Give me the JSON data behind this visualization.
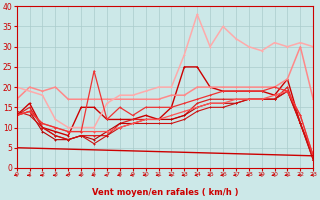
{
  "xlabel": "Vent moyen/en rafales ( km/h )",
  "background_color": "#cce8e8",
  "grid_color": "#aacccc",
  "x_ticks": [
    0,
    1,
    2,
    3,
    4,
    5,
    6,
    7,
    8,
    9,
    10,
    11,
    12,
    13,
    14,
    15,
    16,
    17,
    18,
    19,
    20,
    21,
    22,
    23
  ],
  "y_ticks": [
    0,
    5,
    10,
    15,
    20,
    25,
    30,
    35,
    40
  ],
  "ylim": [
    0,
    40
  ],
  "xlim": [
    0,
    23
  ],
  "series": [
    {
      "x": [
        0,
        1,
        2,
        3,
        4,
        5,
        6,
        7,
        8,
        9,
        10,
        11,
        12,
        13,
        14,
        15,
        16,
        17,
        18,
        19,
        20,
        21,
        22,
        23
      ],
      "y": [
        13,
        16,
        10,
        9,
        8,
        15,
        15,
        12,
        12,
        12,
        13,
        12,
        15,
        25,
        25,
        20,
        19,
        19,
        19,
        19,
        18,
        22,
        11,
        3
      ],
      "color": "#cc0000",
      "lw": 1.0,
      "marker": "+"
    },
    {
      "x": [
        0,
        1,
        2,
        3,
        4,
        5,
        6,
        7,
        8,
        9,
        10,
        11,
        12,
        13,
        14,
        15,
        16,
        17,
        18,
        19,
        20,
        21,
        22,
        23
      ],
      "y": [
        13,
        15,
        10,
        8,
        7,
        8,
        8,
        8,
        11,
        12,
        12,
        12,
        12,
        13,
        16,
        17,
        17,
        17,
        17,
        17,
        17,
        20,
        11,
        3
      ],
      "color": "#dd2222",
      "lw": 0.9,
      "marker": "+"
    },
    {
      "x": [
        0,
        1,
        2,
        3,
        4,
        5,
        6,
        7,
        8,
        9,
        10,
        11,
        12,
        13,
        14,
        15,
        16,
        17,
        18,
        19,
        20,
        21,
        22,
        23
      ],
      "y": [
        13,
        14,
        9,
        7,
        7,
        8,
        7,
        9,
        11,
        11,
        12,
        12,
        12,
        13,
        15,
        16,
        16,
        16,
        17,
        17,
        17,
        19,
        11,
        2
      ],
      "color": "#bb0000",
      "lw": 0.8,
      "marker": "+"
    },
    {
      "x": [
        0,
        1,
        2,
        3,
        4,
        5,
        6,
        7,
        8,
        9,
        10,
        11,
        12,
        13,
        14,
        15,
        16,
        17,
        18,
        19,
        20,
        21,
        22,
        23
      ],
      "y": [
        14,
        13,
        10,
        8,
        7,
        8,
        6,
        8,
        10,
        11,
        11,
        11,
        11,
        12,
        14,
        15,
        15,
        16,
        17,
        17,
        17,
        19,
        11,
        2
      ],
      "color": "#cc1111",
      "lw": 0.8,
      "marker": "+"
    },
    {
      "x": [
        0,
        1,
        2,
        3,
        4,
        5,
        6,
        7,
        8,
        9,
        10,
        11,
        12,
        13,
        14,
        15,
        16,
        17,
        18,
        19,
        20,
        21,
        22,
        23
      ],
      "y": [
        17,
        20,
        19,
        20,
        17,
        17,
        17,
        17,
        17,
        17,
        17,
        17,
        18,
        18,
        20,
        20,
        20,
        20,
        20,
        20,
        20,
        22,
        30,
        17
      ],
      "color": "#ff8888",
      "lw": 1.1,
      "marker": "+"
    },
    {
      "x": [
        0,
        1,
        2,
        3,
        4,
        5,
        6,
        7,
        8,
        9,
        10,
        11,
        12,
        13,
        14,
        15,
        16,
        17,
        18,
        19,
        20,
        21,
        22,
        23
      ],
      "y": [
        20,
        19,
        18,
        12,
        10,
        10,
        10,
        16,
        18,
        18,
        19,
        20,
        20,
        28,
        38,
        30,
        35,
        32,
        30,
        29,
        31,
        30,
        31,
        30
      ],
      "color": "#ffaaaa",
      "lw": 1.1,
      "marker": "+"
    },
    {
      "x": [
        0,
        1,
        2,
        3,
        4,
        5,
        6,
        7,
        8,
        9,
        10,
        11,
        12,
        13,
        14,
        15,
        16,
        17,
        18,
        19,
        20,
        21,
        22,
        23
      ],
      "y": [
        13,
        14,
        11,
        10,
        9,
        9,
        9,
        9,
        10,
        11,
        12,
        12,
        13,
        14,
        15,
        16,
        16,
        17,
        17,
        17,
        18,
        19,
        13,
        3
      ],
      "color": "#ff5555",
      "lw": 0.9,
      "marker": "+"
    },
    {
      "x": [
        0,
        1,
        2,
        3,
        4,
        5,
        6,
        7,
        8,
        9,
        10,
        11,
        12,
        13,
        14,
        15,
        16,
        17,
        18,
        19,
        20,
        21,
        22,
        23
      ],
      "y": [
        13,
        14,
        11,
        10,
        9,
        9,
        24,
        12,
        15,
        13,
        15,
        15,
        15,
        16,
        17,
        18,
        19,
        19,
        19,
        19,
        20,
        19,
        13,
        3
      ],
      "color": "#ee3333",
      "lw": 0.9,
      "marker": "+"
    },
    {
      "x": [
        0,
        23
      ],
      "y": [
        5,
        3
      ],
      "color": "#cc0000",
      "lw": 1.0,
      "marker": null,
      "linestyle": "-"
    }
  ],
  "arrow_color": "#cc0000",
  "tick_color": "#cc0000",
  "xlabel_color": "#cc0000",
  "spine_color": "#cc0000"
}
